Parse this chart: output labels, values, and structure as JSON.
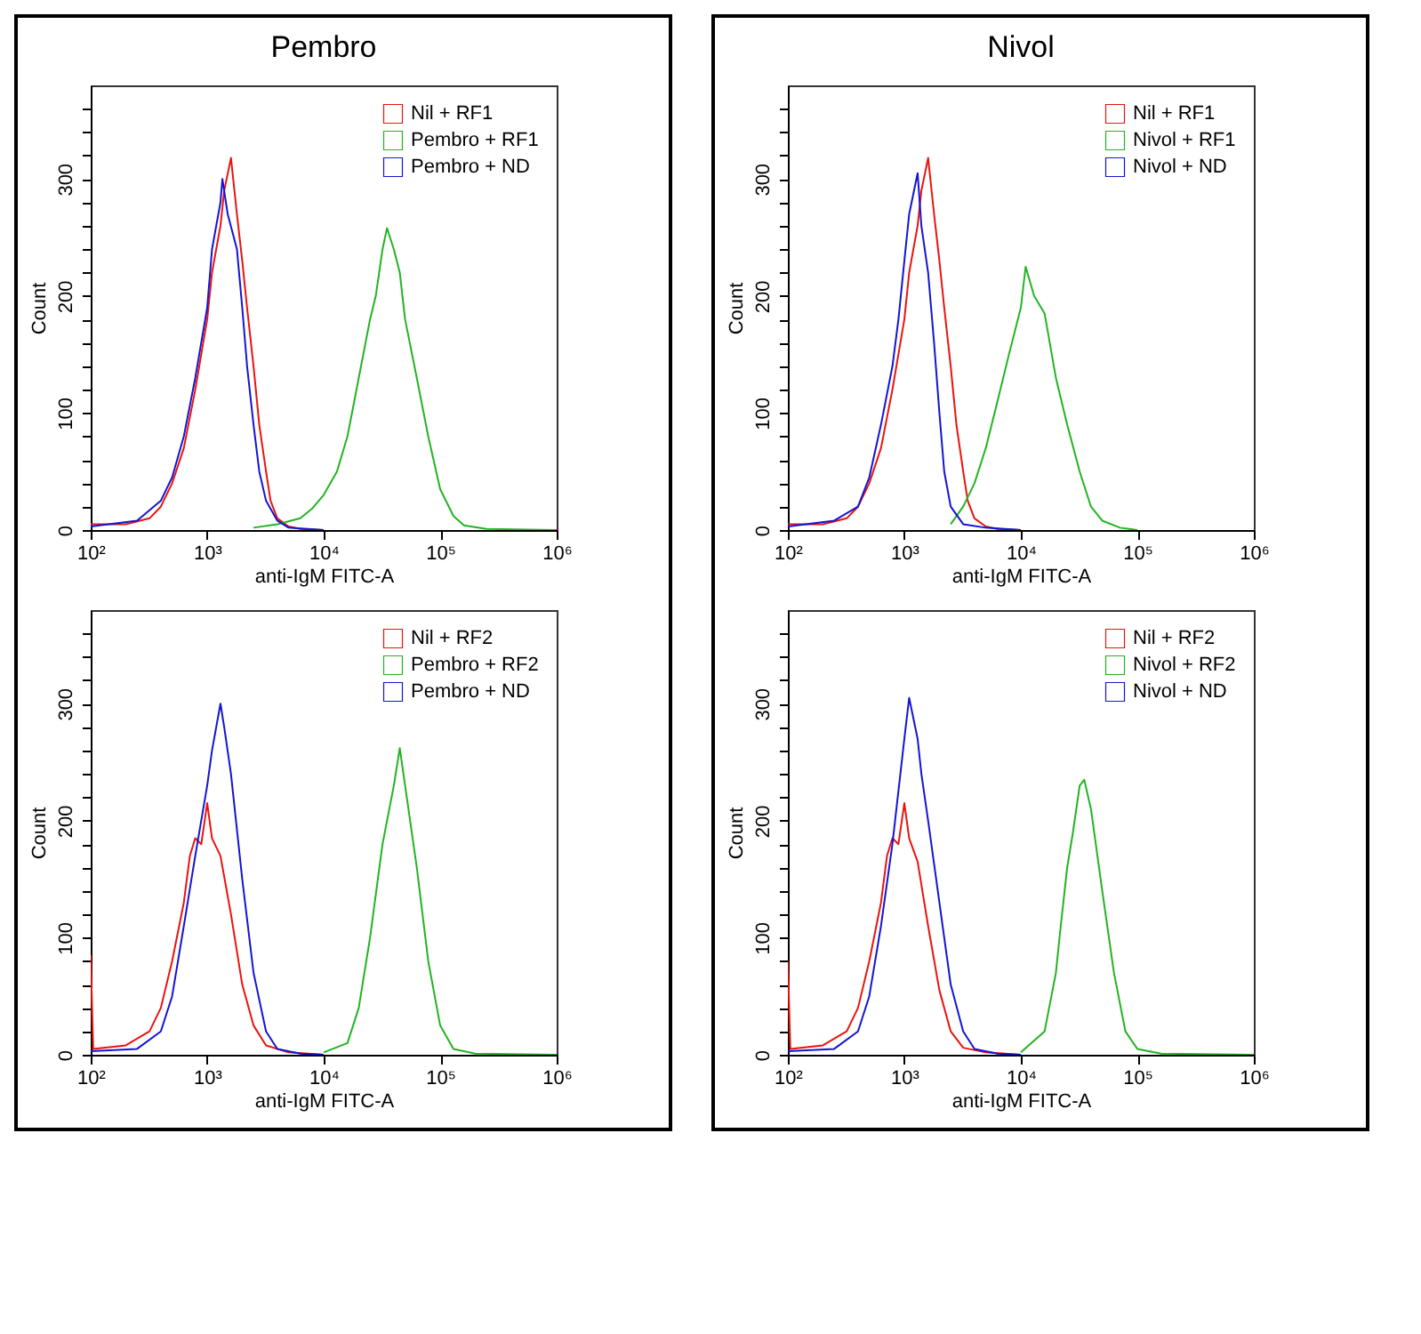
{
  "chart_data": [
    {
      "type": "line",
      "title": "Pembro",
      "xlabel": "anti-IgM FITC-A",
      "ylabel": "Count",
      "log": "x",
      "legend": "top right",
      "xlim": [
        100,
        1000000
      ],
      "xticks": [
        {
          "value": 100,
          "label": "10²"
        },
        {
          "value": 1000,
          "label": "10³"
        },
        {
          "value": 10000,
          "label": "10⁴"
        },
        {
          "value": 100000,
          "label": "10⁵"
        },
        {
          "value": 1000000,
          "label": "10⁶"
        }
      ],
      "ylim": [
        0,
        380
      ],
      "yticks": [
        0,
        {
          "value": 20,
          "label": null
        },
        {
          "value": 40,
          "label": null
        },
        {
          "value": 60,
          "label": null
        },
        {
          "value": 80,
          "label": null
        },
        100,
        {
          "value": 120,
          "label": null
        },
        {
          "value": 140,
          "label": null
        },
        {
          "value": 160,
          "label": null
        },
        {
          "value": 180,
          "label": null
        },
        200,
        {
          "value": 220,
          "label": null
        },
        {
          "value": 240,
          "label": null
        },
        {
          "value": 260,
          "label": null
        },
        {
          "value": 280,
          "label": null
        },
        300,
        {
          "value": 320,
          "label": null
        },
        {
          "value": 340,
          "label": null
        },
        {
          "value": 360,
          "label": null
        }
      ],
      "series": [
        {
          "name": "Nil + RF1",
          "color": "#e8140f",
          "x": [
            100,
            200,
            320,
            400,
            500,
            630,
            790,
            1000,
            1100,
            1300,
            1400,
            1600,
            1800,
            2000,
            2200,
            2500,
            2800,
            3200,
            3500,
            4000,
            5000,
            6300,
            10000
          ],
          "values": [
            5,
            5,
            10,
            20,
            40,
            70,
            120,
            180,
            220,
            260,
            290,
            318,
            270,
            230,
            190,
            140,
            90,
            50,
            25,
            10,
            3,
            1,
            0
          ]
        },
        {
          "name": "Pembro + RF1",
          "color": "#22b422",
          "x": [
            2500,
            4000,
            6300,
            7900,
            10000,
            13000,
            16000,
            20000,
            25000,
            28000,
            32000,
            35000,
            40000,
            45000,
            50000,
            63000,
            79000,
            100000,
            130000,
            160000,
            250000,
            1000000
          ],
          "values": [
            2,
            5,
            10,
            18,
            30,
            50,
            80,
            130,
            180,
            200,
            240,
            258,
            240,
            220,
            180,
            130,
            80,
            35,
            12,
            4,
            1,
            0
          ]
        },
        {
          "name": "Pembro + ND",
          "color": "#1414d2",
          "x": [
            100,
            250,
            400,
            500,
            630,
            790,
            1000,
            1100,
            1300,
            1350,
            1500,
            1800,
            2000,
            2200,
            2500,
            2800,
            3200,
            4000,
            5000,
            10000
          ],
          "values": [
            3,
            8,
            25,
            45,
            80,
            130,
            190,
            240,
            280,
            300,
            270,
            240,
            190,
            140,
            90,
            50,
            25,
            8,
            2,
            0
          ]
        }
      ]
    },
    {
      "type": "line",
      "title": "Nivol",
      "xlabel": "anti-IgM FITC-A",
      "ylabel": "Count",
      "log": "x",
      "legend": "top right",
      "xlim": [
        100,
        1000000
      ],
      "xticks": [
        {
          "value": 100,
          "label": "10²"
        },
        {
          "value": 1000,
          "label": "10³"
        },
        {
          "value": 10000,
          "label": "10⁴"
        },
        {
          "value": 100000,
          "label": "10⁵"
        },
        {
          "value": 1000000,
          "label": "10⁶"
        }
      ],
      "ylim": [
        0,
        380
      ],
      "yticks": [
        0,
        {
          "value": 20,
          "label": null
        },
        {
          "value": 40,
          "label": null
        },
        {
          "value": 60,
          "label": null
        },
        {
          "value": 80,
          "label": null
        },
        100,
        {
          "value": 120,
          "label": null
        },
        {
          "value": 140,
          "label": null
        },
        {
          "value": 160,
          "label": null
        },
        {
          "value": 180,
          "label": null
        },
        200,
        {
          "value": 220,
          "label": null
        },
        {
          "value": 240,
          "label": null
        },
        {
          "value": 260,
          "label": null
        },
        {
          "value": 280,
          "label": null
        },
        300,
        {
          "value": 320,
          "label": null
        },
        {
          "value": 340,
          "label": null
        },
        {
          "value": 360,
          "label": null
        }
      ],
      "series": [
        {
          "name": "Nil + RF1",
          "color": "#e8140f",
          "x": [
            100,
            200,
            320,
            400,
            500,
            630,
            790,
            1000,
            1100,
            1300,
            1400,
            1600,
            1800,
            2000,
            2200,
            2500,
            2800,
            3200,
            3500,
            4000,
            5000,
            6300,
            10000
          ],
          "values": [
            5,
            5,
            10,
            20,
            40,
            70,
            120,
            180,
            220,
            260,
            290,
            318,
            270,
            230,
            190,
            140,
            90,
            50,
            25,
            10,
            3,
            1,
            0
          ]
        },
        {
          "name": "Nivol + RF1",
          "color": "#22b422",
          "x": [
            2500,
            3200,
            4000,
            5000,
            6300,
            7900,
            10000,
            11000,
            13000,
            16000,
            20000,
            25000,
            32000,
            40000,
            50000,
            71000,
            100000
          ],
          "values": [
            5,
            20,
            40,
            70,
            110,
            150,
            190,
            225,
            200,
            185,
            130,
            90,
            50,
            20,
            8,
            2,
            0
          ]
        },
        {
          "name": "Nivol + ND",
          "color": "#1414d2",
          "x": [
            100,
            250,
            400,
            500,
            630,
            790,
            890,
            1000,
            1100,
            1300,
            1400,
            1600,
            1800,
            2000,
            2200,
            2500,
            3200,
            5000,
            10000
          ],
          "values": [
            3,
            8,
            20,
            45,
            90,
            140,
            180,
            230,
            270,
            305,
            260,
            220,
            160,
            100,
            50,
            20,
            5,
            2,
            0
          ]
        }
      ]
    },
    {
      "type": "line",
      "xlabel": "anti-IgM FITC-A",
      "ylabel": "Count",
      "log": "x",
      "legend": "top right",
      "xlim": [
        100,
        1000000
      ],
      "xticks": [
        {
          "value": 100,
          "label": "10²"
        },
        {
          "value": 1000,
          "label": "10³"
        },
        {
          "value": 10000,
          "label": "10⁴"
        },
        {
          "value": 100000,
          "label": "10⁵"
        },
        {
          "value": 1000000,
          "label": "10⁶"
        }
      ],
      "ylim": [
        0,
        380
      ],
      "yticks": [
        0,
        {
          "value": 20,
          "label": null
        },
        {
          "value": 40,
          "label": null
        },
        {
          "value": 60,
          "label": null
        },
        {
          "value": 80,
          "label": null
        },
        100,
        {
          "value": 120,
          "label": null
        },
        {
          "value": 140,
          "label": null
        },
        {
          "value": 160,
          "label": null
        },
        {
          "value": 180,
          "label": null
        },
        200,
        {
          "value": 220,
          "label": null
        },
        {
          "value": 240,
          "label": null
        },
        {
          "value": 260,
          "label": null
        },
        {
          "value": 280,
          "label": null
        },
        300,
        {
          "value": 320,
          "label": null
        },
        {
          "value": 340,
          "label": null
        },
        {
          "value": 360,
          "label": null
        }
      ],
      "series": [
        {
          "name": "Nil + RF2",
          "color": "#e8140f",
          "x": [
            100,
            105,
            200,
            320,
            400,
            500,
            630,
            710,
            790,
            890,
            1000,
            1100,
            1300,
            1600,
            2000,
            2500,
            3200,
            5000,
            10000
          ],
          "values": [
            85,
            5,
            8,
            20,
            40,
            80,
            130,
            170,
            185,
            180,
            215,
            185,
            170,
            120,
            60,
            25,
            8,
            2,
            0
          ]
        },
        {
          "name": "Pembro + RF2",
          "color": "#22b422",
          "x": [
            10000,
            16000,
            20000,
            25000,
            32000,
            40000,
            45000,
            50000,
            63000,
            79000,
            100000,
            130000,
            200000,
            1000000
          ],
          "values": [
            2,
            10,
            40,
            100,
            180,
            230,
            262,
            230,
            160,
            80,
            25,
            5,
            1,
            0
          ]
        },
        {
          "name": "Pembro + ND",
          "color": "#1414d2",
          "x": [
            100,
            250,
            400,
            500,
            630,
            790,
            1000,
            1100,
            1300,
            1400,
            1600,
            2000,
            2500,
            3200,
            4000,
            6300,
            10000
          ],
          "values": [
            3,
            5,
            20,
            50,
            110,
            170,
            230,
            260,
            300,
            280,
            240,
            150,
            70,
            20,
            5,
            1,
            0
          ]
        }
      ]
    },
    {
      "type": "line",
      "xlabel": "anti-IgM FITC-A",
      "ylabel": "Count",
      "log": "x",
      "legend": "top right",
      "xlim": [
        100,
        1000000
      ],
      "xticks": [
        {
          "value": 100,
          "label": "10²"
        },
        {
          "value": 1000,
          "label": "10³"
        },
        {
          "value": 10000,
          "label": "10⁴"
        },
        {
          "value": 100000,
          "label": "10⁵"
        },
        {
          "value": 1000000,
          "label": "10⁶"
        }
      ],
      "ylim": [
        0,
        380
      ],
      "yticks": [
        0,
        {
          "value": 20,
          "label": null
        },
        {
          "value": 40,
          "label": null
        },
        {
          "value": 60,
          "label": null
        },
        {
          "value": 80,
          "label": null
        },
        100,
        {
          "value": 120,
          "label": null
        },
        {
          "value": 140,
          "label": null
        },
        {
          "value": 160,
          "label": null
        },
        {
          "value": 180,
          "label": null
        },
        200,
        {
          "value": 220,
          "label": null
        },
        {
          "value": 240,
          "label": null
        },
        {
          "value": 260,
          "label": null
        },
        {
          "value": 280,
          "label": null
        },
        300,
        {
          "value": 320,
          "label": null
        },
        {
          "value": 340,
          "label": null
        },
        {
          "value": 360,
          "label": null
        }
      ],
      "series": [
        {
          "name": "Nil + RF2",
          "color": "#e8140f",
          "x": [
            100,
            105,
            200,
            320,
            400,
            500,
            630,
            710,
            790,
            890,
            1000,
            1100,
            1300,
            1600,
            2000,
            2500,
            3200,
            5000,
            10000
          ],
          "values": [
            80,
            5,
            8,
            20,
            40,
            80,
            130,
            170,
            185,
            180,
            215,
            185,
            165,
            110,
            55,
            20,
            6,
            2,
            0
          ]
        },
        {
          "name": "Nivol + RF2",
          "color": "#22b422",
          "x": [
            10000,
            16000,
            20000,
            22000,
            25000,
            28000,
            32000,
            35000,
            40000,
            50000,
            63000,
            79000,
            100000,
            160000,
            1000000
          ],
          "values": [
            2,
            20,
            70,
            110,
            160,
            190,
            230,
            235,
            210,
            140,
            70,
            20,
            5,
            1,
            0
          ]
        },
        {
          "name": "Nivol + ND",
          "color": "#1414d2",
          "x": [
            100,
            250,
            400,
            500,
            630,
            790,
            1000,
            1100,
            1300,
            1400,
            1600,
            2000,
            2500,
            3200,
            4000,
            6300,
            10000
          ],
          "values": [
            3,
            5,
            20,
            50,
            110,
            180,
            270,
            305,
            270,
            240,
            200,
            130,
            60,
            20,
            5,
            1,
            0
          ]
        }
      ]
    }
  ]
}
